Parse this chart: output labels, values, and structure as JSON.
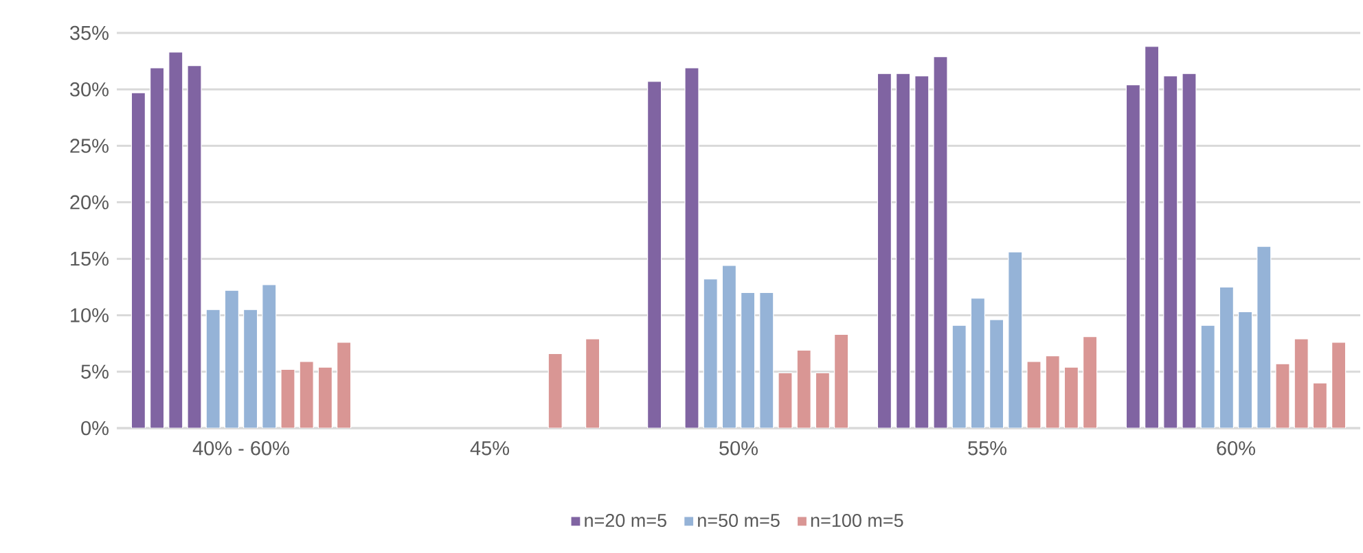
{
  "chart_data": {
    "type": "bar",
    "categories": [
      "40% - 60%",
      "45%",
      "50%",
      "55%",
      "60%"
    ],
    "ylim": [
      0,
      35
    ],
    "yticks": [
      {
        "value": 0,
        "label": "0%"
      },
      {
        "value": 5,
        "label": "5%"
      },
      {
        "value": 10,
        "label": "10%"
      },
      {
        "value": 15,
        "label": "15%"
      },
      {
        "value": 20,
        "label": "20%"
      },
      {
        "value": 25,
        "label": "25%"
      },
      {
        "value": 30,
        "label": "30%"
      },
      {
        "value": 35,
        "label": "35%"
      }
    ],
    "grid": "y",
    "legend": "bottom",
    "series": [
      {
        "name": "n=20 m=5",
        "color": "#8064a2",
        "values": [
          29.7,
          null,
          null,
          31.4,
          30.4
        ]
      },
      {
        "color": "#8064a2",
        "values": [
          31.9,
          null,
          30.7,
          31.4,
          33.8
        ]
      },
      {
        "color": "#8064a2",
        "values": [
          33.3,
          null,
          null,
          31.2,
          31.2
        ]
      },
      {
        "color": "#8064a2",
        "values": [
          32.1,
          null,
          31.9,
          32.9,
          31.4
        ]
      },
      {
        "name": "n=50 m=5",
        "color": "#95b3d7",
        "values": [
          10.5,
          null,
          13.2,
          9.1,
          9.1
        ]
      },
      {
        "color": "#95b3d7",
        "values": [
          12.2,
          null,
          14.4,
          11.5,
          12.5
        ]
      },
      {
        "color": "#95b3d7",
        "values": [
          10.5,
          null,
          12.0,
          9.6,
          10.3
        ]
      },
      {
        "color": "#95b3d7",
        "values": [
          12.7,
          null,
          12.0,
          15.6,
          16.1
        ]
      },
      {
        "name": "n=100 m=5",
        "color": "#d99694",
        "values": [
          5.2,
          null,
          4.9,
          5.9,
          5.7
        ]
      },
      {
        "color": "#d99694",
        "values": [
          5.9,
          6.6,
          6.9,
          6.4,
          7.9
        ]
      },
      {
        "color": "#d99694",
        "values": [
          5.4,
          null,
          4.9,
          5.4,
          4.0
        ]
      },
      {
        "color": "#d99694",
        "values": [
          7.6,
          7.9,
          8.3,
          8.1,
          7.6
        ]
      }
    ]
  }
}
